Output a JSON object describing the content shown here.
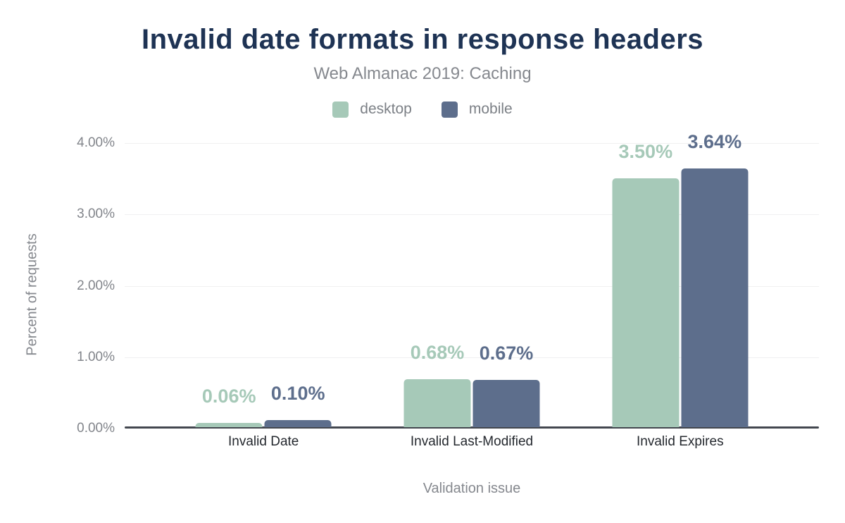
{
  "chart_data": {
    "type": "bar",
    "title": "Invalid date formats in response headers",
    "subtitle": "Web Almanac 2019: Caching",
    "categories": [
      "Invalid Date",
      "Invalid Last-Modified",
      "Invalid Expires"
    ],
    "series": [
      {
        "name": "desktop",
        "color": "#a6c9b8",
        "values": [
          0.06,
          0.68,
          3.5
        ],
        "labels": [
          "0.06%",
          "0.68%",
          "3.50%"
        ]
      },
      {
        "name": "mobile",
        "color": "#5d6e8c",
        "values": [
          0.1,
          0.67,
          3.64
        ],
        "labels": [
          "0.10%",
          "0.67%",
          "3.64%"
        ]
      }
    ],
    "xlabel": "Validation issue",
    "ylabel": "Percent of requests",
    "ylim": [
      0,
      4
    ],
    "yticks": [
      "0.00%",
      "1.00%",
      "2.00%",
      "3.00%",
      "4.00%"
    ],
    "grid": true,
    "legend_position": "top",
    "colors": {
      "title": "#1e3354",
      "muted_text": "#85888e",
      "category_text": "#24282e",
      "gridline": "#f0f0f1",
      "axis_line": "#43474f",
      "background": "#ffffff"
    }
  }
}
